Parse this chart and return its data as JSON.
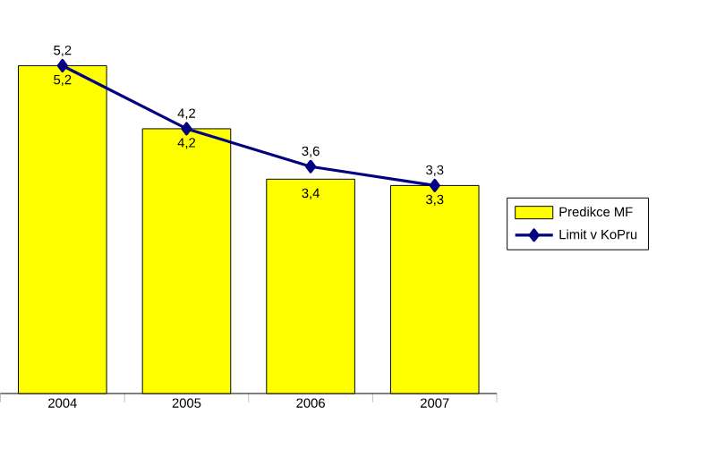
{
  "chart_data": {
    "type": "bar",
    "categories": [
      "2004",
      "2005",
      "2006",
      "2007"
    ],
    "legend": "right",
    "marker": "diamond",
    "series": [
      {
        "name": "Predikce MF",
        "color": "#ffff00",
        "values": [
          5.2,
          4.2,
          3.4,
          3.3
        ],
        "value_labels": [
          "5,2",
          "4,2",
          "3,4",
          "3,3"
        ]
      },
      {
        "name": "Limit v KoPru",
        "type": "line",
        "color": "#000080",
        "values": [
          5.2,
          4.2,
          3.6,
          3.3
        ],
        "value_labels": [
          "5,2",
          "4,2",
          "3,6",
          "3,3"
        ]
      }
    ]
  }
}
